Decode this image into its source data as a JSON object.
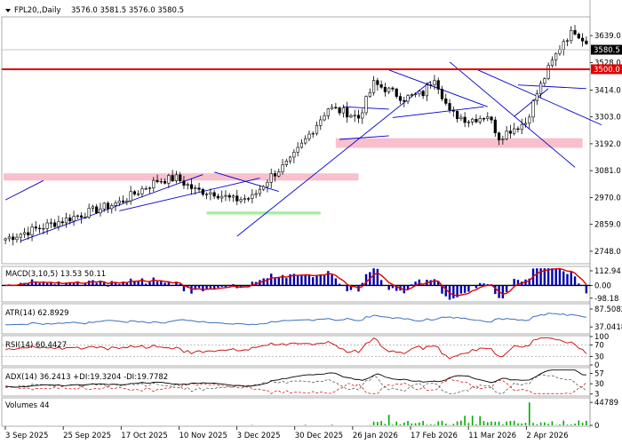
{
  "chart_data": [
    {
      "type": "candlestick",
      "panel": "price",
      "header": {
        "symbol_label": "FPL20,,Daily",
        "ohlc_text": "3576.0 3581.5 3576.0 3580.5"
      },
      "ylim": [
        2700,
        3720
      ],
      "y_ticks": [
        "3639.0",
        "3528.0",
        "3414.0",
        "3303.0",
        "3192.0",
        "3081.0",
        "2970.0",
        "2859.0",
        "2748.0"
      ],
      "y_tick_values": [
        3639,
        3528,
        3414,
        3303,
        3192,
        3081,
        2970,
        2859,
        2748
      ],
      "x_ticks": [
        "3 Sep 2025",
        "25 Sep 2025",
        "17 Oct 2025",
        "10 Nov 2025",
        "3 Dec 2025",
        "30 Dec 2025",
        "26 Jan 2026",
        "17 Feb 2026",
        "11 Mar 2026",
        "2 Apr 2026"
      ],
      "current_price_label": "3580.5",
      "current_price": 3580.5,
      "level_line": {
        "label": "3500.0",
        "value": 3500,
        "color": "#e00000"
      },
      "keyframes": [
        [
          0,
          2800
        ],
        [
          10,
          2850
        ],
        [
          20,
          2900
        ],
        [
          30,
          2950
        ],
        [
          40,
          3040
        ],
        [
          45,
          3050
        ],
        [
          50,
          3000
        ],
        [
          55,
          2990
        ],
        [
          60,
          2960
        ],
        [
          65,
          2970
        ],
        [
          70,
          3060
        ],
        [
          75,
          3120
        ],
        [
          80,
          3230
        ],
        [
          85,
          3340
        ],
        [
          90,
          3320
        ],
        [
          93,
          3300
        ],
        [
          97,
          3440
        ],
        [
          100,
          3420
        ],
        [
          105,
          3380
        ],
        [
          110,
          3400
        ],
        [
          113,
          3470
        ],
        [
          117,
          3320
        ],
        [
          122,
          3290
        ],
        [
          127,
          3310
        ],
        [
          130,
          3220
        ],
        [
          133,
          3250
        ],
        [
          137,
          3280
        ],
        [
          140,
          3400
        ],
        [
          143,
          3500
        ],
        [
          147,
          3620
        ],
        [
          150,
          3660
        ],
        [
          153,
          3612
        ]
      ],
      "bar_count": 154,
      "channels": [
        {
          "p1": [
            0,
            2960
          ],
          "p2": [
            10,
            3040
          ],
          "color": "#0000cc"
        },
        {
          "p1": [
            4,
            2790
          ],
          "p2": [
            52,
            3065
          ],
          "color": "#0000cc"
        },
        {
          "p1": [
            30,
            2915
          ],
          "p2": [
            67,
            3050
          ],
          "color": "#0000cc"
        },
        {
          "p1": [
            55,
            3075
          ],
          "p2": [
            72,
            2995
          ],
          "color": "#0000cc"
        },
        {
          "p1": [
            61,
            2810
          ],
          "p2": [
            112,
            3450
          ],
          "color": "#0000cc"
        },
        {
          "p1": [
            89,
            3345
          ],
          "p2": [
            101,
            3335
          ],
          "color": "#0000cc"
        },
        {
          "p1": [
            88,
            3210
          ],
          "p2": [
            101,
            3225
          ],
          "color": "#0000cc"
        },
        {
          "p1": [
            101,
            3497
          ],
          "p2": [
            127,
            3345
          ],
          "color": "#0000cc"
        },
        {
          "p1": [
            102,
            3300
          ],
          "p2": [
            126,
            3345
          ],
          "color": "#0000cc"
        },
        {
          "p1": [
            117,
            3530
          ],
          "p2": [
            150,
            3095
          ],
          "color": "#0000cc"
        },
        {
          "p1": [
            124,
            3500
          ],
          "p2": [
            157,
            3270
          ],
          "color": "#0000cc"
        },
        {
          "p1": [
            135,
            3435
          ],
          "p2": [
            153,
            3420
          ],
          "color": "#0000cc"
        },
        {
          "p1": [
            134,
            3305
          ],
          "p2": [
            143,
            3420
          ],
          "color": "#0000cc"
        }
      ],
      "zones": [
        {
          "x1": -3,
          "x2": 93,
          "y1": 3070,
          "y2": 3040,
          "color": "#f9c0cc"
        },
        {
          "x1": 87,
          "x2": 152,
          "y1": 3215,
          "y2": 3175,
          "color": "#f9c0cc"
        },
        {
          "x1": 53,
          "x2": 83,
          "y1": 2912,
          "y2": 2900,
          "color": "#a0f09c"
        }
      ]
    },
    {
      "type": "histogram",
      "panel": "macd",
      "label": "MACD(3,10,5) 13.53 50.11",
      "y_ticks": [
        "112.94",
        "0.00",
        "-98.18"
      ],
      "y_tick_values": [
        112.94,
        0,
        -98.18
      ],
      "ylim": [
        -120,
        140
      ],
      "colors": {
        "bar": "#0000aa",
        "signal": "#dd0000"
      }
    },
    {
      "type": "line",
      "panel": "atr",
      "label": "ATR(14) 62.8929",
      "y_ticks": [
        "87.5082",
        "37.0418"
      ],
      "y_tick_values": [
        87.5082,
        37.0418
      ],
      "ylim": [
        20,
        100
      ],
      "colors": {
        "line": "#3a70c0"
      }
    },
    {
      "type": "line",
      "panel": "rsi",
      "label": "RSI(14) 60.4427",
      "y_ticks": [
        "100",
        "70",
        "30",
        "0"
      ],
      "y_tick_values": [
        100,
        70,
        30,
        0
      ],
      "ylim": [
        0,
        100
      ],
      "colors": {
        "line": "#cc0000"
      }
    },
    {
      "type": "line",
      "panel": "adx",
      "label": "ADX(14) 36.2413 +DI:19.3204 -DI:19.7782",
      "y_ticks": [
        "57",
        "30",
        "3"
      ],
      "y_tick_values": [
        57,
        30,
        3
      ],
      "ylim": [
        0,
        70
      ],
      "colors": {
        "adx": "#000000",
        "pdi": "#444444",
        "mdi": "#cc0000"
      }
    },
    {
      "type": "bar",
      "panel": "volume",
      "label": "Volumes 44",
      "y_ticks": [
        "44789",
        "0"
      ],
      "y_tick_values": [
        44789,
        0
      ],
      "ylim": [
        0,
        52000
      ],
      "colors": {
        "bar": "#00aa00"
      }
    }
  ]
}
